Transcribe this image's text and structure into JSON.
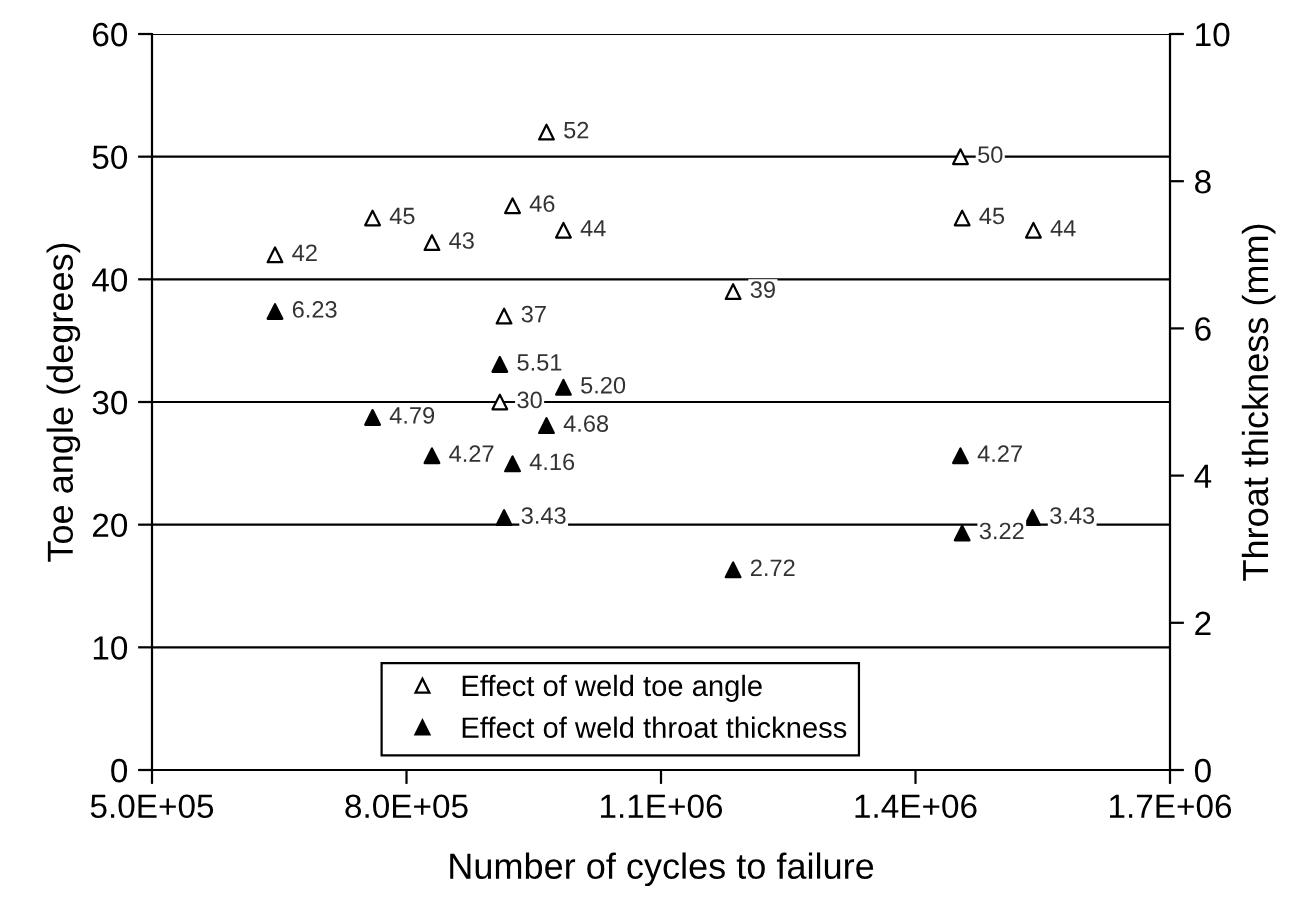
{
  "chart_data": {
    "type": "scatter",
    "xlabel": "Number of cycles to failure",
    "ylabel": "Toe angle (degrees)",
    "y2label": "Throat thickness (mm)",
    "xlim": [
      500000,
      1700000
    ],
    "xticks": [
      {
        "value": 500000,
        "label": "5.0E+05"
      },
      {
        "value": 800000,
        "label": "8.0E+05"
      },
      {
        "value": 1100000,
        "label": "1.1E+06"
      },
      {
        "value": 1400000,
        "label": "1.4E+06"
      },
      {
        "value": 1700000,
        "label": "1.7E+06"
      }
    ],
    "ylim": [
      0,
      60
    ],
    "yticks": [
      0,
      10,
      20,
      30,
      40,
      50,
      60
    ],
    "y2lim": [
      0,
      10
    ],
    "y2ticks": [
      0,
      2,
      4,
      6,
      8,
      10
    ],
    "grid": "y",
    "legend": "bottom",
    "marker": "triangle",
    "data_labels": true,
    "series": [
      {
        "name": "Effect of weld toe angle",
        "color": "#ffffff",
        "x": [
          645000,
          760000,
          830000,
          925000,
          965000,
          985000,
          915000,
          910000,
          1185000,
          1453000,
          1455000,
          1539000
        ],
        "values": [
          42,
          45,
          43,
          46,
          52,
          44,
          37,
          30,
          39,
          50,
          45,
          44
        ],
        "value_labels": [
          "42",
          "45",
          "43",
          "46",
          "52",
          "44",
          "37",
          "30",
          "39",
          "50",
          "45",
          "44"
        ]
      },
      {
        "name": "Effect of weld throat thickness",
        "color": "#000000",
        "axis": "y2",
        "x": [
          645000,
          760000,
          830000,
          910000,
          925000,
          915000,
          985000,
          965000,
          1185000,
          1453000,
          1455000,
          1538000
        ],
        "values": [
          6.23,
          4.79,
          4.27,
          5.51,
          4.16,
          3.43,
          5.2,
          4.68,
          2.72,
          4.27,
          3.22,
          3.43
        ],
        "value_labels": [
          "6.23",
          "4.79",
          "4.27",
          "5.51",
          "4.16",
          "3.43",
          "5.20",
          "4.68",
          "2.72",
          "4.27",
          "3.22",
          "3.43"
        ]
      }
    ]
  }
}
